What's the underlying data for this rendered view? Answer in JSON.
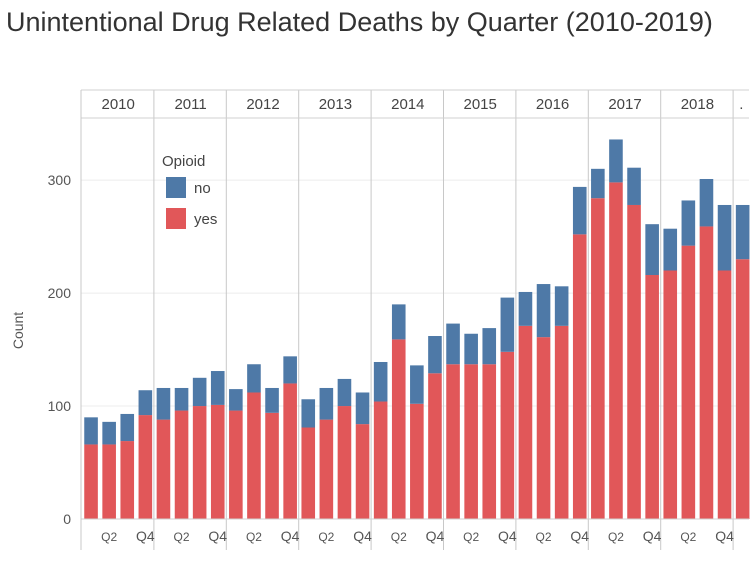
{
  "chart_data": {
    "type": "bar",
    "stacked": true,
    "title": "Unintentional Drug Related Deaths by Quarter (2010-2019)",
    "ylabel": "Count",
    "ylim": [
      0,
      355
    ],
    "yticks": [
      0,
      100,
      200,
      300
    ],
    "grid": true,
    "legend": {
      "title": "Opioid",
      "placement": "top-left"
    },
    "years": [
      "2010",
      "2011",
      "2012",
      "2013",
      "2014",
      "2015",
      "2016",
      "2017",
      "2018",
      "."
    ],
    "quarter_ticks": [
      "Q2",
      "Q4"
    ],
    "categories": [
      "2010 Q1",
      "2010 Q2",
      "2010 Q3",
      "2010 Q4",
      "2011 Q1",
      "2011 Q2",
      "2011 Q3",
      "2011 Q4",
      "2012 Q1",
      "2012 Q2",
      "2012 Q3",
      "2012 Q4",
      "2013 Q1",
      "2013 Q2",
      "2013 Q3",
      "2013 Q4",
      "2014 Q1",
      "2014 Q2",
      "2014 Q3",
      "2014 Q4",
      "2015 Q1",
      "2015 Q2",
      "2015 Q3",
      "2015 Q4",
      "2016 Q1",
      "2016 Q2",
      "2016 Q3",
      "2016 Q4",
      "2017 Q1",
      "2017 Q2",
      "2017 Q3",
      "2017 Q4",
      "2018 Q1",
      "2018 Q2",
      "2018 Q3",
      "2018 Q4",
      "2019 Q1"
    ],
    "series": [
      {
        "name": "yes",
        "color": "#e15759",
        "values": [
          66,
          66,
          69,
          92,
          88,
          96,
          100,
          101,
          96,
          112,
          94,
          120,
          81,
          88,
          100,
          84,
          104,
          159,
          102,
          129,
          137,
          137,
          137,
          148,
          171,
          161,
          171,
          252,
          284,
          298,
          278,
          216,
          220,
          242,
          259,
          220,
          230
        ]
      },
      {
        "name": "no",
        "color": "#4e79a7",
        "values": [
          24,
          20,
          24,
          22,
          28,
          20,
          25,
          30,
          19,
          25,
          22,
          24,
          25,
          28,
          24,
          28,
          35,
          31,
          34,
          33,
          36,
          27,
          32,
          48,
          30,
          47,
          35,
          42,
          26,
          38,
          33,
          45,
          37,
          40,
          42,
          58,
          48
        ]
      }
    ]
  }
}
